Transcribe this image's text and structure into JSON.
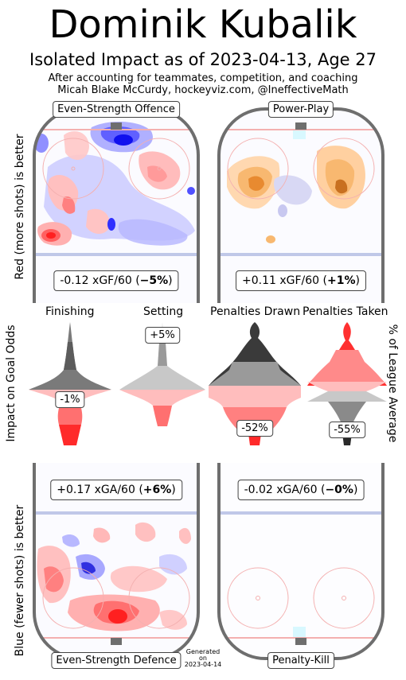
{
  "header": {
    "title": "Dominik Kubalik",
    "subtitle": "Isolated Impact as of 2023-04-13, Age 27",
    "note_line1": "After accounting for teammates, competition, and coaching",
    "note_line2": "Micah Blake McCurdy, hockeyviz.com, @IneffectiveMath"
  },
  "side_labels": {
    "left_top": "Red (more shots) is better",
    "left_middle": "Impact on Goal Odds",
    "left_bottom": "Blue (fewer shots) is better",
    "right_middle": "% of League Average"
  },
  "generated": {
    "line1": "Generated",
    "line2": "on",
    "line3": "2023-04-14"
  },
  "colors": {
    "red": "#ff3030",
    "blue": "#3030ff",
    "orange": "#f0a030",
    "board": "#6e6e6e",
    "goal_line": "#f4b0b0",
    "blue_line": "#c0c8e8"
  },
  "chart_data": [
    {
      "type": "heatmap",
      "title": "Even-Strength Offence",
      "stat_value": "-0.12",
      "stat_unit": "xGF/60",
      "stat_pct": "−5%",
      "stat_open": "(",
      "stat_close": ")"
    },
    {
      "type": "heatmap",
      "title": "Power-Play",
      "stat_value": "+0.11",
      "stat_unit": "xGF/60",
      "stat_pct": "+1%",
      "stat_open": "(",
      "stat_close": ")"
    },
    {
      "type": "heatmap",
      "title": "Even-Strength Defence",
      "stat_value": "+0.17",
      "stat_unit": "xGA/60",
      "stat_pct": "+6%",
      "stat_open": "(",
      "stat_close": ")"
    },
    {
      "type": "heatmap",
      "title": "Penalty-Kill",
      "stat_value": "-0.02",
      "stat_unit": "xGA/60",
      "stat_pct": "−0%",
      "stat_open": "(",
      "stat_close": ")"
    },
    {
      "type": "violin",
      "title": "Finishing",
      "value_label": "-1%",
      "value": -1
    },
    {
      "type": "violin",
      "title": "Setting",
      "value_label": "+5%",
      "value": 5
    },
    {
      "type": "violin",
      "title": "Penalties Drawn",
      "value_label": "-52%",
      "value": -52
    },
    {
      "type": "violin",
      "title": "Penalties Taken",
      "value_label": "-55%",
      "value": -55
    }
  ]
}
